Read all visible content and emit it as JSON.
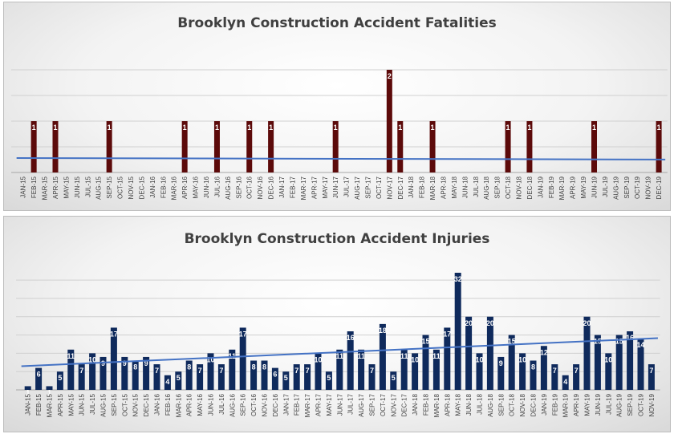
{
  "chart_data": [
    {
      "type": "bar",
      "title": "Brooklyn Construction Accident Fatalities",
      "bar_color": "#5c0a0a",
      "trend_color": "#4472c4",
      "trendline": true,
      "ylim": [
        0,
        2
      ],
      "categories": [
        "JAN-15",
        "FEB-15",
        "MAR-15",
        "APR-15",
        "MAY-15",
        "JUN-15",
        "JUL-15",
        "AUG-15",
        "SEP-15",
        "OCT-15",
        "NOV-15",
        "DEC-15",
        "JAN-16",
        "FEB-16",
        "MAR-16",
        "APR-16",
        "MAY-16",
        "JUN-16",
        "JUL-16",
        "AUG-16",
        "SEP-16",
        "OCT-16",
        "NOV-16",
        "DEC-16",
        "JAN-17",
        "FEB-17",
        "MAR-17",
        "APR-17",
        "MAY-17",
        "JUN-17",
        "JUL-17",
        "AUG-17",
        "SEP-17",
        "OCT-17",
        "NOV-17",
        "DEC-17",
        "JAN-18",
        "FEB-18",
        "MAR-18",
        "APR-18",
        "MAY-18",
        "JUN-18",
        "JUL-18",
        "AUG-18",
        "SEP-18",
        "OCT-18",
        "NOV-18",
        "DEC-18",
        "JAN-19",
        "FEB-19",
        "MAR-19",
        "APR-19",
        "MAY-19",
        "JUN-19",
        "JUL-19",
        "AUG-19",
        "SEP-19",
        "OCT-19",
        "NOV-19",
        "DEC-19"
      ],
      "values": [
        0,
        1,
        0,
        1,
        0,
        0,
        0,
        0,
        1,
        0,
        0,
        0,
        0,
        0,
        0,
        1,
        0,
        0,
        1,
        0,
        0,
        1,
        0,
        1,
        0,
        0,
        0,
        0,
        0,
        1,
        0,
        0,
        0,
        0,
        2,
        1,
        0,
        0,
        1,
        0,
        0,
        0,
        0,
        0,
        0,
        1,
        0,
        1,
        0,
        0,
        0,
        0,
        0,
        1,
        0,
        0,
        0,
        0,
        0,
        1
      ]
    },
    {
      "type": "bar",
      "title": "Brooklyn Construction Accident Injuries",
      "bar_color": "#0f2a5c",
      "trend_color": "#4472c4",
      "trendline": true,
      "ylim": [
        0,
        32
      ],
      "categories": [
        "JAN-15",
        "FEB-15",
        "MAR-15",
        "APR-15",
        "MAY-15",
        "JUN-15",
        "JUL-15",
        "AUG-15",
        "SEP-15",
        "OCT-15",
        "NOV-15",
        "DEC-15",
        "JAN-16",
        "FEB-16",
        "MAR-16",
        "APR-16",
        "MAY-16",
        "JUN-16",
        "JUL-16",
        "AUG-16",
        "SEP-16",
        "OCT-16",
        "NOV-16",
        "DEC-16",
        "JAN-17",
        "FEB-17",
        "MAR-17",
        "APR-17",
        "MAY-17",
        "JUN-17",
        "JUL-17",
        "AUG-17",
        "SEP-17",
        "OCT-17",
        "NOV-17",
        "DEC-17",
        "JAN-18",
        "FEB-18",
        "MAR-18",
        "APR-18",
        "MAY-18",
        "JUN-18",
        "JUL-18",
        "AUG-18",
        "SEP-18",
        "OCT-18",
        "NOV-18",
        "DEC-18",
        "JAN-19",
        "FEB-19",
        "MAR-19",
        "APR-19",
        "MAY-19",
        "JUN-19",
        "JUL-19",
        "AUG-19",
        "SEP-19",
        "OCT-19",
        "NOV-19"
      ],
      "values": [
        1,
        6,
        1,
        5,
        11,
        7,
        10,
        9,
        17,
        9,
        8,
        9,
        7,
        4,
        5,
        8,
        7,
        10,
        7,
        11,
        17,
        8,
        8,
        6,
        5,
        7,
        7,
        10,
        5,
        11,
        16,
        11,
        7,
        18,
        5,
        11,
        10,
        15,
        11,
        17,
        32,
        20,
        10,
        20,
        9,
        15,
        10,
        8,
        12,
        7,
        4,
        7,
        20,
        15,
        10,
        15,
        16,
        14,
        7
      ]
    }
  ]
}
